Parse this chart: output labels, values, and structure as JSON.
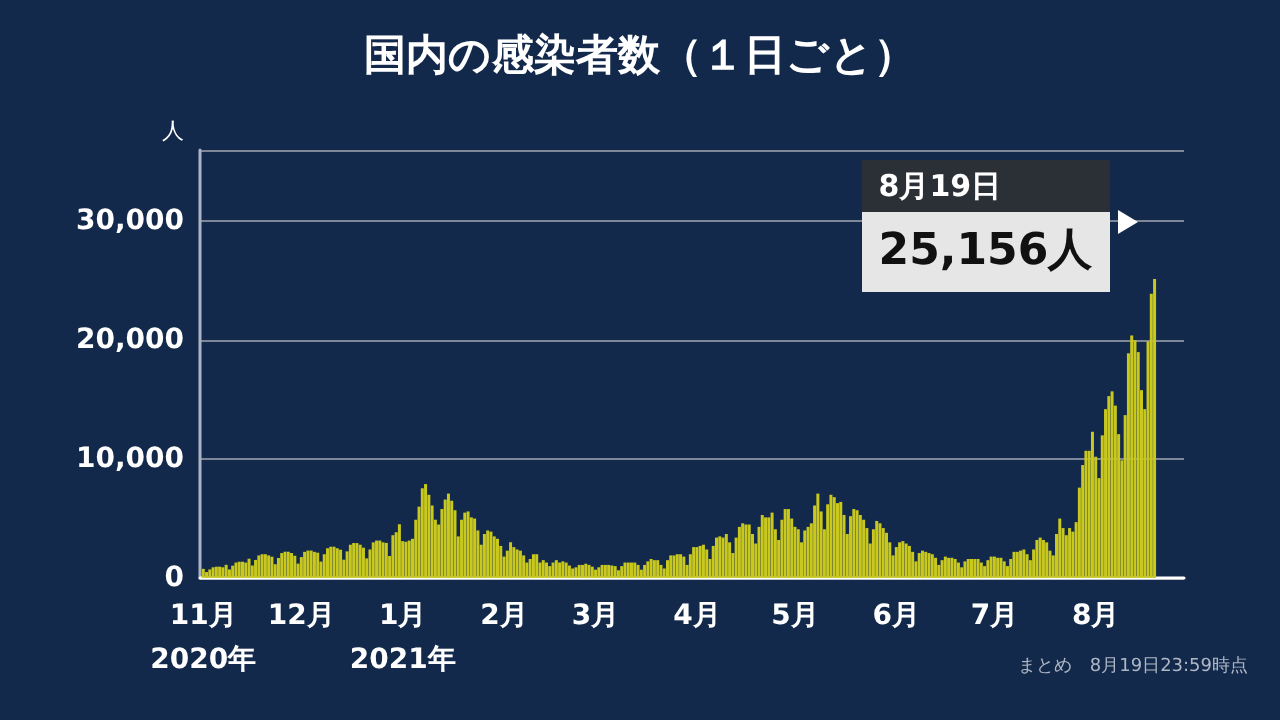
{
  "chart_data": {
    "type": "bar",
    "title": "国内の感染者数（１日ごと）",
    "ylabel": "人",
    "x": [
      "2020-11-01",
      "2020-11-02",
      "2020-11-03",
      "2020-11-04",
      "2020-11-05",
      "2020-11-06",
      "2020-11-07",
      "2020-11-08",
      "2020-11-09",
      "2020-11-10",
      "2020-11-11",
      "2020-11-12",
      "2020-11-13",
      "2020-11-14",
      "2020-11-15",
      "2020-11-16",
      "2020-11-17",
      "2020-11-18",
      "2020-11-19",
      "2020-11-20",
      "2020-11-21",
      "2020-11-22",
      "2020-11-23",
      "2020-11-24",
      "2020-11-25",
      "2020-11-26",
      "2020-11-27",
      "2020-11-28",
      "2020-11-29",
      "2020-11-30",
      "2020-12-01",
      "2020-12-02",
      "2020-12-03",
      "2020-12-04",
      "2020-12-05",
      "2020-12-06",
      "2020-12-07",
      "2020-12-08",
      "2020-12-09",
      "2020-12-10",
      "2020-12-11",
      "2020-12-12",
      "2020-12-13",
      "2020-12-14",
      "2020-12-15",
      "2020-12-16",
      "2020-12-17",
      "2020-12-18",
      "2020-12-19",
      "2020-12-20",
      "2020-12-21",
      "2020-12-22",
      "2020-12-23",
      "2020-12-24",
      "2020-12-25",
      "2020-12-26",
      "2020-12-27",
      "2020-12-28",
      "2020-12-29",
      "2020-12-30",
      "2020-12-31",
      "2021-01-01",
      "2021-01-02",
      "2021-01-03",
      "2021-01-04",
      "2021-01-05",
      "2021-01-06",
      "2021-01-07",
      "2021-01-08",
      "2021-01-09",
      "2021-01-10",
      "2021-01-11",
      "2021-01-12",
      "2021-01-13",
      "2021-01-14",
      "2021-01-15",
      "2021-01-16",
      "2021-01-17",
      "2021-01-18",
      "2021-01-19",
      "2021-01-20",
      "2021-01-21",
      "2021-01-22",
      "2021-01-23",
      "2021-01-24",
      "2021-01-25",
      "2021-01-26",
      "2021-01-27",
      "2021-01-28",
      "2021-01-29",
      "2021-01-30",
      "2021-01-31",
      "2021-02-01",
      "2021-02-02",
      "2021-02-03",
      "2021-02-04",
      "2021-02-05",
      "2021-02-06",
      "2021-02-07",
      "2021-02-08",
      "2021-02-09",
      "2021-02-10",
      "2021-02-11",
      "2021-02-12",
      "2021-02-13",
      "2021-02-14",
      "2021-02-15",
      "2021-02-16",
      "2021-02-17",
      "2021-02-18",
      "2021-02-19",
      "2021-02-20",
      "2021-02-21",
      "2021-02-22",
      "2021-02-23",
      "2021-02-24",
      "2021-02-25",
      "2021-02-26",
      "2021-02-27",
      "2021-02-28",
      "2021-03-01",
      "2021-03-02",
      "2021-03-03",
      "2021-03-04",
      "2021-03-05",
      "2021-03-06",
      "2021-03-07",
      "2021-03-08",
      "2021-03-09",
      "2021-03-10",
      "2021-03-11",
      "2021-03-12",
      "2021-03-13",
      "2021-03-14",
      "2021-03-15",
      "2021-03-16",
      "2021-03-17",
      "2021-03-18",
      "2021-03-19",
      "2021-03-20",
      "2021-03-21",
      "2021-03-22",
      "2021-03-23",
      "2021-03-24",
      "2021-03-25",
      "2021-03-26",
      "2021-03-27",
      "2021-03-28",
      "2021-03-29",
      "2021-03-30",
      "2021-03-31",
      "2021-04-01",
      "2021-04-02",
      "2021-04-03",
      "2021-04-04",
      "2021-04-05",
      "2021-04-06",
      "2021-04-07",
      "2021-04-08",
      "2021-04-09",
      "2021-04-10",
      "2021-04-11",
      "2021-04-12",
      "2021-04-13",
      "2021-04-14",
      "2021-04-15",
      "2021-04-16",
      "2021-04-17",
      "2021-04-18",
      "2021-04-19",
      "2021-04-20",
      "2021-04-21",
      "2021-04-22",
      "2021-04-23",
      "2021-04-24",
      "2021-04-25",
      "2021-04-26",
      "2021-04-27",
      "2021-04-28",
      "2021-04-29",
      "2021-04-30",
      "2021-05-01",
      "2021-05-02",
      "2021-05-03",
      "2021-05-04",
      "2021-05-05",
      "2021-05-06",
      "2021-05-07",
      "2021-05-08",
      "2021-05-09",
      "2021-05-10",
      "2021-05-11",
      "2021-05-12",
      "2021-05-13",
      "2021-05-14",
      "2021-05-15",
      "2021-05-16",
      "2021-05-17",
      "2021-05-18",
      "2021-05-19",
      "2021-05-20",
      "2021-05-21",
      "2021-05-22",
      "2021-05-23",
      "2021-05-24",
      "2021-05-25",
      "2021-05-26",
      "2021-05-27",
      "2021-05-28",
      "2021-05-29",
      "2021-05-30",
      "2021-05-31",
      "2021-06-01",
      "2021-06-02",
      "2021-06-03",
      "2021-06-04",
      "2021-06-05",
      "2021-06-06",
      "2021-06-07",
      "2021-06-08",
      "2021-06-09",
      "2021-06-10",
      "2021-06-11",
      "2021-06-12",
      "2021-06-13",
      "2021-06-14",
      "2021-06-15",
      "2021-06-16",
      "2021-06-17",
      "2021-06-18",
      "2021-06-19",
      "2021-06-20",
      "2021-06-21",
      "2021-06-22",
      "2021-06-23",
      "2021-06-24",
      "2021-06-25",
      "2021-06-26",
      "2021-06-27",
      "2021-06-28",
      "2021-06-29",
      "2021-06-30",
      "2021-07-01",
      "2021-07-02",
      "2021-07-03",
      "2021-07-04",
      "2021-07-05",
      "2021-07-06",
      "2021-07-07",
      "2021-07-08",
      "2021-07-09",
      "2021-07-10",
      "2021-07-11",
      "2021-07-12",
      "2021-07-13",
      "2021-07-14",
      "2021-07-15",
      "2021-07-16",
      "2021-07-17",
      "2021-07-18",
      "2021-07-19",
      "2021-07-20",
      "2021-07-21",
      "2021-07-22",
      "2021-07-23",
      "2021-07-24",
      "2021-07-25",
      "2021-07-26",
      "2021-07-27",
      "2021-07-28",
      "2021-07-29",
      "2021-07-30",
      "2021-07-31",
      "2021-08-01",
      "2021-08-02",
      "2021-08-03",
      "2021-08-04",
      "2021-08-05",
      "2021-08-06",
      "2021-08-07",
      "2021-08-08",
      "2021-08-09",
      "2021-08-10",
      "2021-08-11",
      "2021-08-12",
      "2021-08-13",
      "2021-08-14",
      "2021-08-15",
      "2021-08-16",
      "2021-08-17",
      "2021-08-18",
      "2021-08-19"
    ],
    "values": [
      770,
      500,
      720,
      900,
      950,
      950,
      900,
      1110,
      720,
      1040,
      1300,
      1370,
      1370,
      1300,
      1620,
      1050,
      1520,
      1900,
      2000,
      2000,
      1900,
      1790,
      1160,
      1680,
      2100,
      2210,
      2210,
      2100,
      1870,
      1210,
      1760,
      2200,
      2310,
      2310,
      2200,
      2130,
      1380,
      2000,
      2500,
      2630,
      2630,
      2500,
      2380,
      1540,
      2240,
      2800,
      2940,
      2940,
      2800,
      2550,
      1650,
      2400,
      3000,
      3150,
      3150,
      3000,
      2950,
      1850,
      3600,
      3850,
      4520,
      3100,
      3050,
      3150,
      3300,
      4900,
      6000,
      7550,
      7900,
      7000,
      6100,
      4900,
      4500,
      5800,
      6600,
      7100,
      6500,
      5700,
      3500,
      4900,
      5500,
      5600,
      5100,
      5000,
      4000,
      2800,
      3700,
      4000,
      3900,
      3500,
      3300,
      2700,
      1800,
      2300,
      3000,
      2600,
      2400,
      2300,
      1900,
      1300,
      1600,
      2000,
      2000,
      1300,
      1500,
      1300,
      1000,
      1300,
      1500,
      1300,
      1400,
      1300,
      1050,
      800,
      900,
      1100,
      1100,
      1200,
      1100,
      950,
      700,
      900,
      1100,
      1100,
      1100,
      1050,
      1000,
      650,
      1000,
      1300,
      1300,
      1300,
      1300,
      1100,
      700,
      1100,
      1400,
      1600,
      1500,
      1500,
      1100,
      800,
      1500,
      1900,
      1900,
      2000,
      2000,
      1800,
      1100,
      2000,
      2600,
      2600,
      2700,
      2800,
      2400,
      1600,
      2700,
      3400,
      3500,
      3400,
      3700,
      3000,
      2100,
      3400,
      4300,
      4600,
      4500,
      4500,
      3700,
      2900,
      4300,
      5300,
      5100,
      5100,
      5500,
      4100,
      3200,
      4900,
      5800,
      5800,
      5000,
      4300,
      4100,
      3000,
      4000,
      4300,
      4600,
      6100,
      7100,
      5600,
      4100,
      6200,
      7000,
      6800,
      6300,
      6400,
      5300,
      3700,
      5200,
      5800,
      5700,
      5300,
      4900,
      4200,
      2900,
      4100,
      4800,
      4600,
      4200,
      3800,
      3000,
      1900,
      2600,
      3000,
      3100,
      2900,
      2700,
      2200,
      1400,
      2100,
      2300,
      2200,
      2100,
      2000,
      1700,
      1100,
      1500,
      1800,
      1700,
      1700,
      1600,
      1300,
      900,
      1400,
      1600,
      1600,
      1600,
      1600,
      1300,
      1000,
      1500,
      1800,
      1800,
      1700,
      1700,
      1400,
      1000,
      1600,
      2200,
      2200,
      2300,
      2400,
      2000,
      1500,
      2400,
      3200,
      3400,
      3200,
      3000,
      2300,
      1900,
      3700,
      5000,
      4200,
      3600,
      4200,
      3900,
      4700,
      7600,
      9500,
      10700,
      10700,
      12300,
      10200,
      8400,
      12000,
      14200,
      15300,
      15700,
      14500,
      12100,
      9900,
      13700,
      18900,
      20400,
      20000,
      19000,
      15800,
      14200,
      19900,
      23900,
      25156
    ],
    "color": "#c8c81e",
    "xlim": [
      "2020-10-31",
      "2021-08-28"
    ],
    "xticks": [
      {
        "value": "2020-11-01",
        "label": "11月\n2020年"
      },
      {
        "value": "2020-12-01",
        "label": "12月"
      },
      {
        "value": "2021-01-01",
        "label": "1月\n2021年"
      },
      {
        "value": "2021-02-01",
        "label": "2月"
      },
      {
        "value": "2021-03-01",
        "label": "3月"
      },
      {
        "value": "2021-04-01",
        "label": "4月"
      },
      {
        "value": "2021-05-01",
        "label": "5月"
      },
      {
        "value": "2021-06-01",
        "label": "6月"
      },
      {
        "value": "2021-07-01",
        "label": "7月"
      },
      {
        "value": "2021-08-01",
        "label": "8月"
      }
    ],
    "ylim": [
      0,
      36000
    ],
    "yticks": [
      {
        "value": 0,
        "label": "0"
      },
      {
        "value": 10000,
        "label": "10,000"
      },
      {
        "value": 20000,
        "label": "20,000"
      },
      {
        "value": 30000,
        "label": "30,000"
      }
    ],
    "grid": "y",
    "annotations": [
      {
        "text": "8月19日\n25,156人",
        "x": "2021-08-19",
        "y": 25156
      },
      "まとめ　8月19日23:59時点"
    ]
  }
}
